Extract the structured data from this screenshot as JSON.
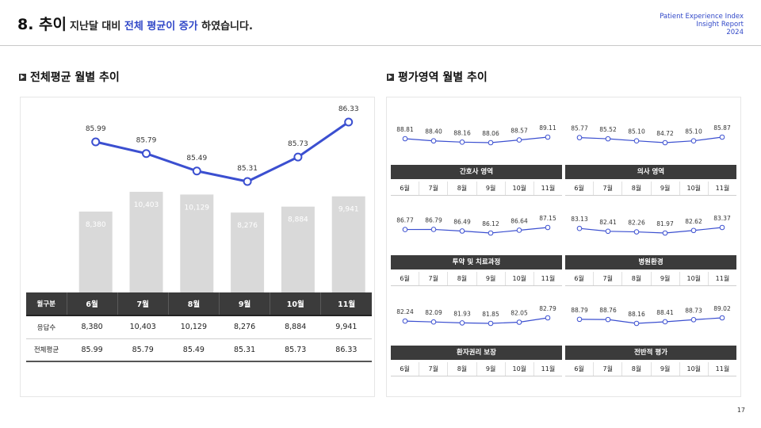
{
  "header": {
    "number_title": "8. 추이",
    "subtitle_pre": "지난달 대비 ",
    "subtitle_highlight": "전체 평균이 증가",
    "subtitle_post": " 하였습니다.",
    "brand_line1": "Patient Experience Index",
    "brand_line2": "Insight Report",
    "brand_line3": "2024",
    "accent_color": "#3148c8"
  },
  "left_section": {
    "heading": "전체평균 월별 추이"
  },
  "right_section": {
    "heading": "평가영역 월별 추이"
  },
  "chart_data": [
    {
      "type": "bar",
      "title": "전체평균 월별 추이",
      "categories": [
        "6월",
        "7월",
        "8월",
        "9월",
        "10월",
        "11월"
      ],
      "series": [
        {
          "name": "응답수",
          "type": "bar",
          "color": "#d9d9d9",
          "values": [
            8380,
            10403,
            10129,
            8276,
            8884,
            9941
          ],
          "labels": [
            "8,380",
            "10,403",
            "10,129",
            "8,276",
            "8,884",
            "9,941"
          ]
        },
        {
          "name": "전체평균",
          "type": "line",
          "color": "#3b4fd0",
          "values": [
            85.99,
            85.79,
            85.49,
            85.31,
            85.73,
            86.33
          ],
          "labels": [
            "85.99",
            "85.79",
            "85.49",
            "85.31",
            "85.73",
            "86.33"
          ]
        }
      ],
      "table": {
        "header": [
          "월구분",
          "6월",
          "7월",
          "8월",
          "9월",
          "10월",
          "11월"
        ],
        "rows": [
          [
            "응답수",
            "8,380",
            "10,403",
            "10,129",
            "8,276",
            "8,884",
            "9,941"
          ],
          [
            "전체평균",
            "85.99",
            "85.79",
            "85.49",
            "85.31",
            "85.73",
            "86.33"
          ]
        ]
      }
    },
    {
      "type": "line",
      "title": "간호사 영역",
      "categories": [
        "6월",
        "7월",
        "8월",
        "9월",
        "10월",
        "11월"
      ],
      "values": [
        88.81,
        88.4,
        88.16,
        88.06,
        88.57,
        89.11
      ],
      "labels": [
        "88.81",
        "88.40",
        "88.16",
        "88.06",
        "88.57",
        "89.11"
      ]
    },
    {
      "type": "line",
      "title": "의사 영역",
      "categories": [
        "6월",
        "7월",
        "8월",
        "9월",
        "10월",
        "11월"
      ],
      "values": [
        85.77,
        85.52,
        85.1,
        84.72,
        85.1,
        85.87
      ],
      "labels": [
        "85.77",
        "85.52",
        "85.10",
        "84.72",
        "85.10",
        "85.87"
      ]
    },
    {
      "type": "line",
      "title": "투약 및 치료과정",
      "categories": [
        "6월",
        "7월",
        "8월",
        "9월",
        "10월",
        "11월"
      ],
      "values": [
        86.77,
        86.79,
        86.49,
        86.12,
        86.64,
        87.15
      ],
      "labels": [
        "86.77",
        "86.79",
        "86.49",
        "86.12",
        "86.64",
        "87.15"
      ]
    },
    {
      "type": "line",
      "title": "병원환경",
      "categories": [
        "6월",
        "7월",
        "8월",
        "9월",
        "10월",
        "11월"
      ],
      "values": [
        83.13,
        82.41,
        82.26,
        81.97,
        82.62,
        83.37
      ],
      "labels": [
        "83.13",
        "82.41",
        "82.26",
        "81.97",
        "82.62",
        "83.37"
      ]
    },
    {
      "type": "line",
      "title": "환자권리 보장",
      "categories": [
        "6월",
        "7월",
        "8월",
        "9월",
        "10월",
        "11월"
      ],
      "values": [
        82.24,
        82.09,
        81.93,
        81.85,
        82.05,
        82.79
      ],
      "labels": [
        "82.24",
        "82.09",
        "81.93",
        "81.85",
        "82.05",
        "82.79"
      ]
    },
    {
      "type": "line",
      "title": "전반적 평가",
      "categories": [
        "6월",
        "7월",
        "8월",
        "9월",
        "10월",
        "11월"
      ],
      "values": [
        88.79,
        88.76,
        88.16,
        88.41,
        88.73,
        89.02
      ],
      "labels": [
        "88.79",
        "88.76",
        "88.16",
        "88.41",
        "88.73",
        "89.02"
      ]
    }
  ],
  "page_number": "17"
}
